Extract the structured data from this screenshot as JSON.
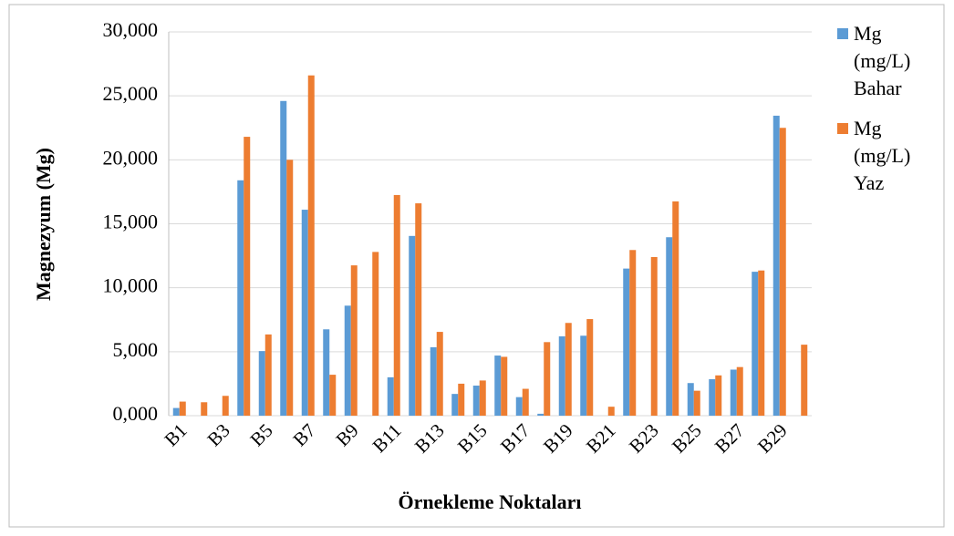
{
  "chart_data": {
    "type": "bar",
    "y_label": "Magnezyum (Mg)",
    "x_label": "Örnekleme Noktaları",
    "categories": [
      "B1",
      null,
      "B3",
      null,
      "B5",
      null,
      "B7",
      null,
      "B9",
      null,
      "B11",
      null,
      "B13",
      null,
      "B15",
      null,
      "B17",
      null,
      "B19",
      null,
      "B21",
      null,
      "B23",
      null,
      "B25",
      null,
      "B27",
      null,
      "B29",
      null
    ],
    "series": [
      {
        "name": "Mg (mg/L) Bahar",
        "color": "#5b9bd5",
        "values": [
          0.6,
          0,
          0,
          18.4,
          5.05,
          24.6,
          16.1,
          6.75,
          8.6,
          0,
          3.0,
          14.05,
          5.35,
          1.7,
          2.35,
          4.7,
          1.45,
          0.15,
          6.2,
          6.25,
          0,
          11.5,
          0,
          13.95,
          2.55,
          2.85,
          3.6,
          11.25,
          23.45,
          0
        ]
      },
      {
        "name": "Mg (mg/L) Yaz",
        "color": "#ed7d31",
        "values": [
          1.1,
          1.05,
          1.55,
          21.8,
          6.35,
          20.0,
          26.6,
          3.2,
          11.75,
          12.8,
          17.25,
          16.6,
          6.55,
          2.5,
          2.75,
          4.6,
          2.1,
          5.75,
          7.25,
          7.55,
          0.7,
          12.95,
          12.4,
          16.75,
          1.95,
          3.15,
          3.8,
          11.35,
          22.5,
          5.55
        ]
      }
    ],
    "ylim": [
      0,
      30
    ],
    "yticks": [
      {
        "value": 0,
        "label": "0,000"
      },
      {
        "value": 5,
        "label": "5,000"
      },
      {
        "value": 10,
        "label": "10,000"
      },
      {
        "value": 15,
        "label": "15,000"
      },
      {
        "value": 20,
        "label": "20,000"
      },
      {
        "value": 25,
        "label": "25,000"
      },
      {
        "value": 30,
        "label": "30,000"
      }
    ],
    "grid": true,
    "legend": "right"
  }
}
